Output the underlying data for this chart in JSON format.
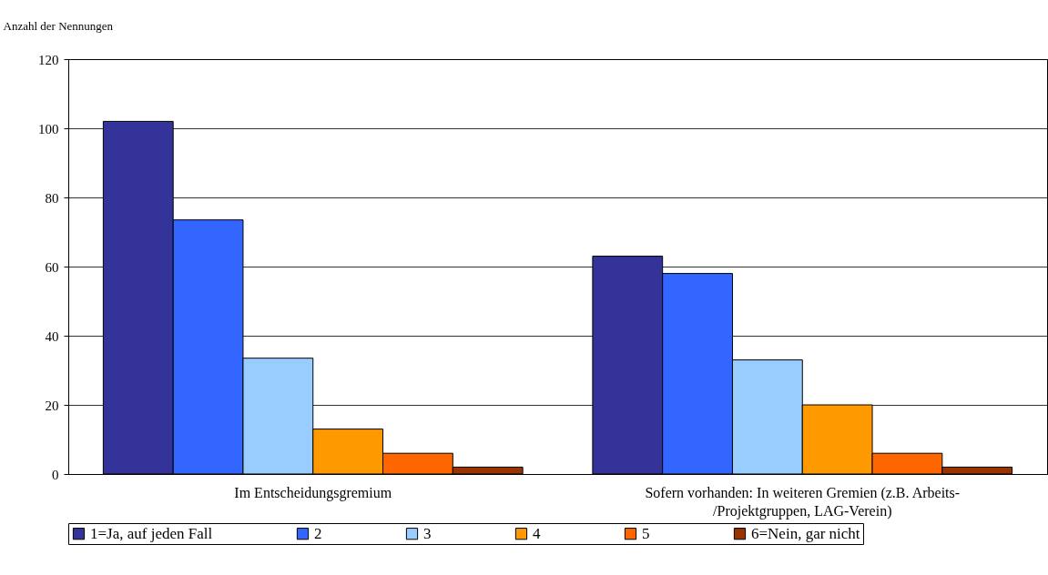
{
  "chart_data": {
    "type": "bar",
    "ylabel": "Anzahl der Nennungen",
    "categories": [
      "Im Entscheidungsgremium",
      "Sofern vorhanden: In weiteren Gremien (z.B. Arbeits-/Projektgruppen, LAG-Verein)"
    ],
    "series": [
      {
        "name": "1=Ja, auf jeden Fall",
        "color": "#333399",
        "values": [
          102,
          63
        ]
      },
      {
        "name": "2",
        "color": "#3366ff",
        "values": [
          73.5,
          58
        ]
      },
      {
        "name": "3",
        "color": "#99ccff",
        "values": [
          33.5,
          33
        ]
      },
      {
        "name": "4",
        "color": "#ff9900",
        "values": [
          13,
          20
        ]
      },
      {
        "name": "5",
        "color": "#ff6600",
        "values": [
          6,
          6
        ]
      },
      {
        "name": "6=Nein, gar nicht",
        "color": "#993300",
        "values": [
          2,
          2
        ]
      }
    ],
    "ylim": [
      0,
      120
    ],
    "yticks": [
      0,
      20,
      40,
      60,
      80,
      100,
      120
    ],
    "grid": true,
    "legend": "bottom"
  }
}
